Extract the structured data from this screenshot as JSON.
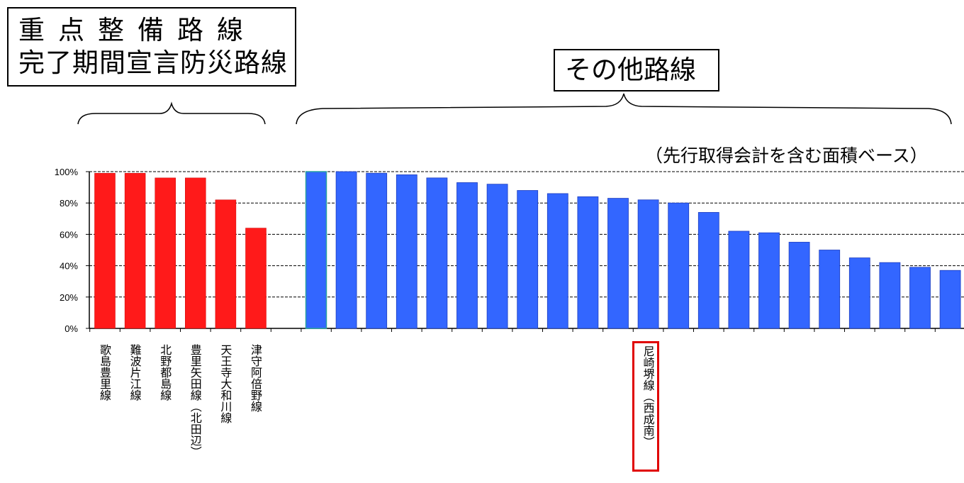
{
  "header": {
    "group_left_line1": "重点整備路線",
    "group_left_line2": "完了期間宣言防災路線",
    "group_right": "その他路線",
    "note": "（先行取得会計を含む面積ベース）"
  },
  "colors": {
    "priority": "#ff1a1a",
    "other": "#3366ff",
    "highlight_border": "#e00000"
  },
  "chart_data": {
    "type": "bar",
    "ylim": [
      0,
      100
    ],
    "y_ticks": [
      "0%",
      "20%",
      "40%",
      "60%",
      "80%",
      "100%"
    ],
    "y_tick_values": [
      0,
      20,
      40,
      60,
      80,
      100
    ],
    "grid": "dashed horizontal",
    "groups": [
      {
        "name": "重点整備路線 完了期間宣言防災路線",
        "categories": [
          "歌島豊里線",
          "難波片江線",
          "北野都島線",
          "豊里矢田線（北田辺）",
          "天王寺大和川線",
          "津守阿倍野線"
        ],
        "values": [
          99,
          99,
          96,
          96,
          82,
          64
        ]
      },
      {
        "name": "その他路線",
        "highlighted_category": "尼崎堺線（西成南）",
        "highlighted_index": 11,
        "values": [
          100,
          100,
          99,
          98,
          96,
          93,
          92,
          88,
          86,
          84,
          83,
          82,
          80,
          74,
          62,
          61,
          55,
          50,
          45,
          42,
          39,
          37
        ]
      }
    ]
  }
}
